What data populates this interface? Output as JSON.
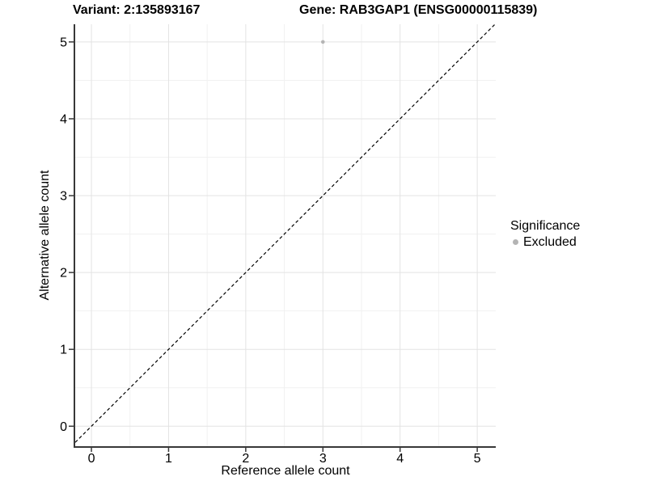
{
  "chart_data": {
    "type": "scatter",
    "title_left": "Variant: 2:135893167",
    "title_right": "Gene: RAB3GAP1 (ENSG00000115839)",
    "xlabel": "Reference allele count",
    "ylabel": "Alternative allele count",
    "points": [
      {
        "x": 3,
        "y": 5,
        "series": "Excluded"
      }
    ],
    "x_ticks": [
      0,
      1,
      2,
      3,
      4,
      5
    ],
    "y_ticks": [
      0,
      1,
      2,
      3,
      4,
      5
    ],
    "x_minor_ticks": [
      0.5,
      1.5,
      2.5,
      3.5,
      4.5
    ],
    "y_minor_ticks": [
      0.5,
      1.5,
      2.5,
      3.5,
      4.5
    ],
    "xlim": [
      -0.21,
      5.24
    ],
    "ylim": [
      -0.26,
      5.23
    ],
    "grid": true,
    "reference_line": {
      "type": "identity",
      "style": "dashed"
    },
    "legend": {
      "title": "Significance",
      "position": "right",
      "entries": [
        {
          "label": "Excluded",
          "color": "#b4b4b4"
        }
      ]
    }
  },
  "colors": {
    "background": "#ffffff",
    "text": "#000000",
    "axis_line": "#383838",
    "grid_major": "#e3e3e3",
    "grid_minor": "#f1f1f1",
    "point": "#b4b4b4",
    "dashed_line": "#000000"
  }
}
